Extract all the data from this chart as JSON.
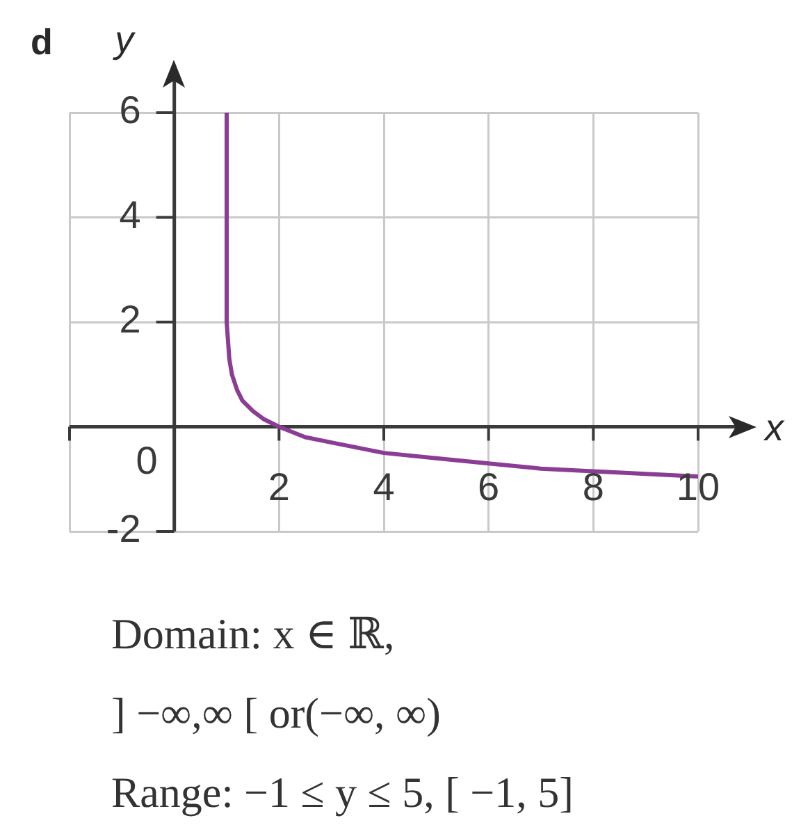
{
  "chart_data": {
    "type": "line",
    "title": "d",
    "xlabel": "x",
    "ylabel": "y",
    "annotations": [
      "0",
      "Domain: x ∈ ℝ,",
      "] −∞,∞ [ or(−∞, ∞)",
      "Range: −1 ≤ y ≤ 5, [ −1, 5]"
    ],
    "x": [
      1,
      1,
      1.05,
      1.1,
      1.2,
      1.3,
      1.5,
      1.7,
      2,
      2.5,
      3,
      3.5,
      4,
      5,
      6,
      7,
      8,
      9,
      10
    ],
    "values": [
      6,
      2,
      1.3,
      1,
      0.7,
      0.5,
      0.3,
      0.15,
      0,
      -0.2,
      -0.3,
      -0.4,
      -0.5,
      -0.6,
      -0.7,
      -0.8,
      -0.85,
      -0.9,
      -0.95
    ],
    "color": "#8b3d96",
    "xlim": [
      -2,
      10
    ],
    "ylim": [
      -2,
      6
    ],
    "xticks": [
      {
        "value": -2,
        "label": null
      },
      {
        "value": 0,
        "label": null
      },
      2,
      4,
      6,
      8,
      10
    ],
    "yticks": [
      -2,
      {
        "value": 0,
        "label": null
      },
      2,
      4,
      6
    ],
    "grid": true,
    "marker": "none",
    "line_style": "solid"
  }
}
